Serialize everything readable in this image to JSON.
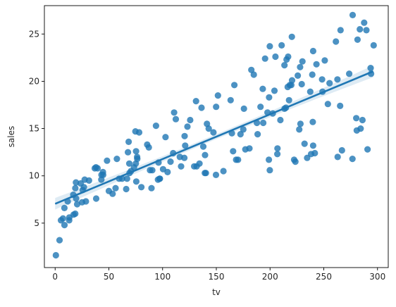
{
  "chart_data": {
    "type": "scatter",
    "title": "",
    "xlabel": "tv",
    "ylabel": "sales",
    "xlim": [
      -10,
      310
    ],
    "ylim": [
      0.3,
      28
    ],
    "xticks": [
      0,
      50,
      100,
      150,
      200,
      250,
      300
    ],
    "yticks": [
      5,
      10,
      15,
      20,
      25
    ],
    "grid": false,
    "point_color": "#1f77b4",
    "regression": {
      "type": "linear",
      "x_start": 0,
      "y_start": 7.05,
      "x_end": 296,
      "y_end": 21.05,
      "ci_color": "#1f77b4"
    },
    "points": [
      [
        0.7,
        1.6
      ],
      [
        4.1,
        3.2
      ],
      [
        5.4,
        5.3
      ],
      [
        7.3,
        5.5
      ],
      [
        8.6,
        6.6
      ],
      [
        8.7,
        4.8
      ],
      [
        11.7,
        7.3
      ],
      [
        13.1,
        5.3
      ],
      [
        13.2,
        5.6
      ],
      [
        16.9,
        8.0
      ],
      [
        17.2,
        5.9
      ],
      [
        18.7,
        6.0
      ],
      [
        18.8,
        8.7
      ],
      [
        19.4,
        9.3
      ],
      [
        19.6,
        7.6
      ],
      [
        20.5,
        7.0
      ],
      [
        23.8,
        9.2
      ],
      [
        25.1,
        7.2
      ],
      [
        25.6,
        8.5
      ],
      [
        26.8,
        8.8
      ],
      [
        27.5,
        9.6
      ],
      [
        28.6,
        7.3
      ],
      [
        31.5,
        9.5
      ],
      [
        36.9,
        10.8
      ],
      [
        38.0,
        10.9
      ],
      [
        38.2,
        7.6
      ],
      [
        39.5,
        10.8
      ],
      [
        43.0,
        9.6
      ],
      [
        43.1,
        10.1
      ],
      [
        44.5,
        10.4
      ],
      [
        44.7,
        10.1
      ],
      [
        48.3,
        11.6
      ],
      [
        50.0,
        8.4
      ],
      [
        53.5,
        8.1
      ],
      [
        56.2,
        8.7
      ],
      [
        57.5,
        11.8
      ],
      [
        59.6,
        9.7
      ],
      [
        62.3,
        9.7
      ],
      [
        66.1,
        8.6
      ],
      [
        66.9,
        9.7
      ],
      [
        67.8,
        12.5
      ],
      [
        68.4,
        13.6
      ],
      [
        69.0,
        11.3
      ],
      [
        69.2,
        10.3
      ],
      [
        70.6,
        10.5
      ],
      [
        73.4,
        10.9
      ],
      [
        74.7,
        14.7
      ],
      [
        75.1,
        11.3
      ],
      [
        75.3,
        12.6
      ],
      [
        75.5,
        9.4
      ],
      [
        76.3,
        12.0
      ],
      [
        76.4,
        11.8
      ],
      [
        78.2,
        14.6
      ],
      [
        80.2,
        8.8
      ],
      [
        85.7,
        13.3
      ],
      [
        87.2,
        13.0
      ],
      [
        88.3,
        10.6
      ],
      [
        89.7,
        8.7
      ],
      [
        90.4,
        10.6
      ],
      [
        93.9,
        15.3
      ],
      [
        95.7,
        9.6
      ],
      [
        96.2,
        11.4
      ],
      [
        97.2,
        9.7
      ],
      [
        97.5,
        9.7
      ],
      [
        100.4,
        10.7
      ],
      [
        102.7,
        14.1
      ],
      [
        104.6,
        10.4
      ],
      [
        107.4,
        11.5
      ],
      [
        109.8,
        12.4
      ],
      [
        110.7,
        16.7
      ],
      [
        112.3,
        16.0
      ],
      [
        116.0,
        12.0
      ],
      [
        117.2,
        11.0
      ],
      [
        120.2,
        11.9
      ],
      [
        120.5,
        14.2
      ],
      [
        121.0,
        13.2
      ],
      [
        123.1,
        15.2
      ],
      [
        125.7,
        15.9
      ],
      [
        129.4,
        11.0
      ],
      [
        131.1,
        17.9
      ],
      [
        131.7,
        11.0
      ],
      [
        134.3,
        11.3
      ],
      [
        136.2,
        17.2
      ],
      [
        137.9,
        13.1
      ],
      [
        139.3,
        10.3
      ],
      [
        139.5,
        12.2
      ],
      [
        140.3,
        10.3
      ],
      [
        141.3,
        15.5
      ],
      [
        142.9,
        15.0
      ],
      [
        147.3,
        14.6
      ],
      [
        149.7,
        10.1
      ],
      [
        149.8,
        17.3
      ],
      [
        151.5,
        18.5
      ],
      [
        156.6,
        10.5
      ],
      [
        163.3,
        18.0
      ],
      [
        164.5,
        14.5
      ],
      [
        165.6,
        12.6
      ],
      [
        166.8,
        19.6
      ],
      [
        168.4,
        11.7
      ],
      [
        170.2,
        11.7
      ],
      [
        172.5,
        14.4
      ],
      [
        175.1,
        14.9
      ],
      [
        175.7,
        17.1
      ],
      [
        177.0,
        12.8
      ],
      [
        180.8,
        12.9
      ],
      [
        182.6,
        21.2
      ],
      [
        184.9,
        20.7
      ],
      [
        187.8,
        15.6
      ],
      [
        188.4,
        14.4
      ],
      [
        191.1,
        17.3
      ],
      [
        193.2,
        19.2
      ],
      [
        193.7,
        15.6
      ],
      [
        195.4,
        22.4
      ],
      [
        197.6,
        16.7
      ],
      [
        198.9,
        11.7
      ],
      [
        199.1,
        18.3
      ],
      [
        199.8,
        10.6
      ],
      [
        199.8,
        23.7
      ],
      [
        202.5,
        16.6
      ],
      [
        204.1,
        19.0
      ],
      [
        205.0,
        22.6
      ],
      [
        206.8,
        12.3
      ],
      [
        206.9,
        12.9
      ],
      [
        209.6,
        15.9
      ],
      [
        210.8,
        23.8
      ],
      [
        213.4,
        21.7
      ],
      [
        213.5,
        17.1
      ],
      [
        214.7,
        17.2
      ],
      [
        215.4,
        22.3
      ],
      [
        216.4,
        19.4
      ],
      [
        216.8,
        22.6
      ],
      [
        217.7,
        18.0
      ],
      [
        218.4,
        19.6
      ],
      [
        219.8,
        19.6
      ],
      [
        220.3,
        24.7
      ],
      [
        220.5,
        20.1
      ],
      [
        222.4,
        11.7
      ],
      [
        223.6,
        11.5
      ],
      [
        225.8,
        20.6
      ],
      [
        227.2,
        14.9
      ],
      [
        228.0,
        21.5
      ],
      [
        228.3,
        15.5
      ],
      [
        229.5,
        19.7
      ],
      [
        230.1,
        22.1
      ],
      [
        232.1,
        13.4
      ],
      [
        234.5,
        11.9
      ],
      [
        237.4,
        18.9
      ],
      [
        238.2,
        12.3
      ],
      [
        239.3,
        20.7
      ],
      [
        239.8,
        15.7
      ],
      [
        240.1,
        23.2
      ],
      [
        240.1,
        13.2
      ],
      [
        241.7,
        12.4
      ],
      [
        243.2,
        21.8
      ],
      [
        248.4,
        20.2
      ],
      [
        248.8,
        18.9
      ],
      [
        250.9,
        22.2
      ],
      [
        253.8,
        17.6
      ],
      [
        255.4,
        19.8
      ],
      [
        261.3,
        24.2
      ],
      [
        262.9,
        12.0
      ],
      [
        262.7,
        20.2
      ],
      [
        265.2,
        17.4
      ],
      [
        265.6,
        25.4
      ],
      [
        266.9,
        12.7
      ],
      [
        273.7,
        20.8
      ],
      [
        276.7,
        11.8
      ],
      [
        276.9,
        27.0
      ],
      [
        280.2,
        16.1
      ],
      [
        280.7,
        14.8
      ],
      [
        281.4,
        24.4
      ],
      [
        283.6,
        25.5
      ],
      [
        284.3,
        15.0
      ],
      [
        286.0,
        15.9
      ],
      [
        287.6,
        26.2
      ],
      [
        289.7,
        25.4
      ],
      [
        290.7,
        12.8
      ],
      [
        293.6,
        21.4
      ],
      [
        294.0,
        20.8
      ],
      [
        296.4,
        23.8
      ]
    ]
  }
}
